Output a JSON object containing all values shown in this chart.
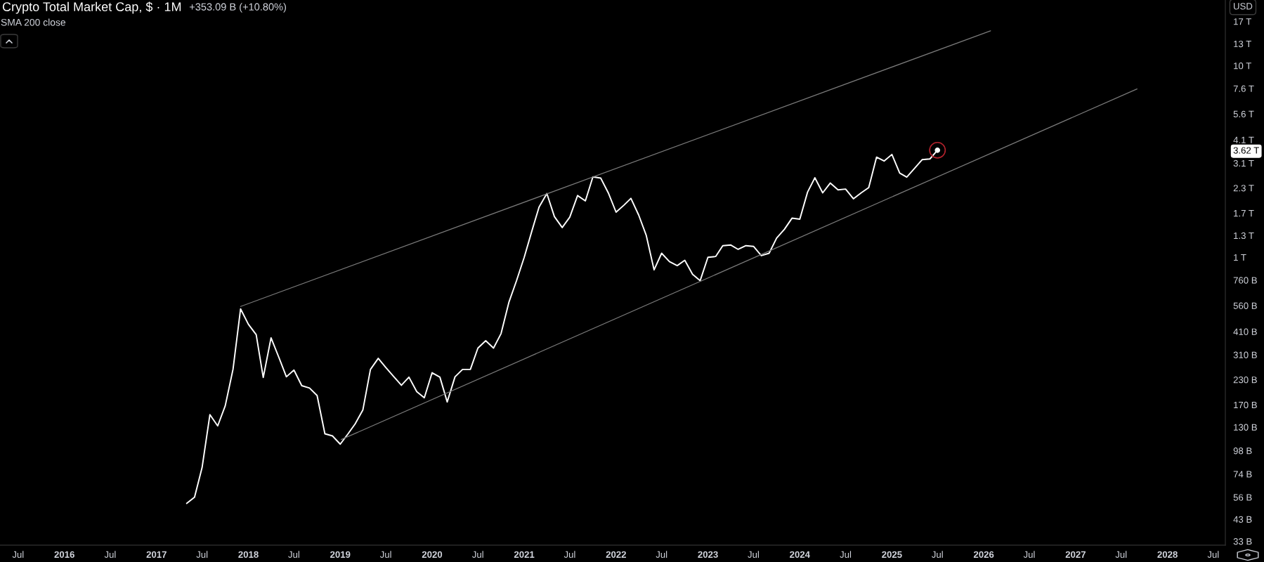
{
  "chart_data": {
    "type": "line",
    "title": "Crypto Total Market Cap, $ · 1M",
    "subtitle": "SMA 200 close",
    "annotations": [
      "+353.09 B (+10.80%)",
      "USD"
    ],
    "log": true,
    "xlim": [
      "2015-04-20",
      "2028-08-18"
    ],
    "ylim": [
      31500000000.0,
      22000000000000.0
    ],
    "xticks": [
      {
        "value": "2015-07",
        "label": "Jul"
      },
      {
        "value": "2016-01",
        "label": "2016"
      },
      {
        "value": "2016-07",
        "label": "Jul"
      },
      {
        "value": "2017-01",
        "label": "2017"
      },
      {
        "value": "2017-07",
        "label": "Jul"
      },
      {
        "value": "2018-01",
        "label": "2018"
      },
      {
        "value": "2018-07",
        "label": "Jul"
      },
      {
        "value": "2019-01",
        "label": "2019"
      },
      {
        "value": "2019-07",
        "label": "Jul"
      },
      {
        "value": "2020-01",
        "label": "2020"
      },
      {
        "value": "2020-07",
        "label": "Jul"
      },
      {
        "value": "2021-01",
        "label": "2021"
      },
      {
        "value": "2021-07",
        "label": "Jul"
      },
      {
        "value": "2022-01",
        "label": "2022"
      },
      {
        "value": "2022-07",
        "label": "Jul"
      },
      {
        "value": "2023-01",
        "label": "2023"
      },
      {
        "value": "2023-07",
        "label": "Jul"
      },
      {
        "value": "2024-01",
        "label": "2024"
      },
      {
        "value": "2024-07",
        "label": "Jul"
      },
      {
        "value": "2025-01",
        "label": "2025"
      },
      {
        "value": "2025-07",
        "label": "Jul"
      },
      {
        "value": "2026-01",
        "label": "2026"
      },
      {
        "value": "2026-07",
        "label": "Jul"
      },
      {
        "value": "2027-01",
        "label": "2027"
      },
      {
        "value": "2027-07",
        "label": "Jul"
      },
      {
        "value": "2028-01",
        "label": "2028"
      },
      {
        "value": "2028-07",
        "label": "Jul"
      }
    ],
    "yticks": [
      {
        "value": 33000000000.0,
        "label": "33 B"
      },
      {
        "value": 43000000000.0,
        "label": "43 B"
      },
      {
        "value": 56000000000.0,
        "label": "56 B"
      },
      {
        "value": 74000000000.0,
        "label": "74 B"
      },
      {
        "value": 98000000000.0,
        "label": "98 B"
      },
      {
        "value": 130000000000.0,
        "label": "130 B"
      },
      {
        "value": 170000000000.0,
        "label": "170 B"
      },
      {
        "value": 230000000000.0,
        "label": "230 B"
      },
      {
        "value": 310000000000.0,
        "label": "310 B"
      },
      {
        "value": 410000000000.0,
        "label": "410 B"
      },
      {
        "value": 560000000000.0,
        "label": "560 B"
      },
      {
        "value": 760000000000.0,
        "label": "760 B"
      },
      {
        "value": 1000000000000.0,
        "label": "1 T"
      },
      {
        "value": 1300000000000.0,
        "label": "1.3 T"
      },
      {
        "value": 1700000000000.0,
        "label": "1.7 T"
      },
      {
        "value": 2300000000000.0,
        "label": "2.3 T"
      },
      {
        "value": 3100000000000.0,
        "label": "3.1 T"
      },
      {
        "value": 3620000000000.0,
        "label": "3.62 T"
      },
      {
        "value": 4100000000000.0,
        "label": "4.1 T"
      },
      {
        "value": 5600000000000.0,
        "label": "5.6 T"
      },
      {
        "value": 7600000000000.0,
        "label": "7.6 T"
      },
      {
        "value": 10000000000000.0,
        "label": "10 T"
      },
      {
        "value": 13000000000000.0,
        "label": "13 T"
      },
      {
        "value": 17000000000000.0,
        "label": "17 T"
      }
    ],
    "series": [
      {
        "color": "#ffffff",
        "x": [
          "2017-05",
          "2017-06",
          "2017-07",
          "2017-08",
          "2017-09",
          "2017-10",
          "2017-11",
          "2017-12",
          "2018-01",
          "2018-02",
          "2018-03",
          "2018-04",
          "2018-05",
          "2018-06",
          "2018-07",
          "2018-08",
          "2018-09",
          "2018-10",
          "2018-11",
          "2018-12",
          "2019-01",
          "2019-02",
          "2019-03",
          "2019-04",
          "2019-05",
          "2019-06",
          "2019-07",
          "2019-08",
          "2019-09",
          "2019-10",
          "2019-11",
          "2019-12",
          "2020-01",
          "2020-02",
          "2020-03",
          "2020-04",
          "2020-05",
          "2020-06",
          "2020-07",
          "2020-08",
          "2020-09",
          "2020-10",
          "2020-11",
          "2020-12",
          "2021-01",
          "2021-02",
          "2021-03",
          "2021-04",
          "2021-05",
          "2021-06",
          "2021-07",
          "2021-08",
          "2021-09",
          "2021-10",
          "2021-11",
          "2021-12",
          "2022-01",
          "2022-02",
          "2022-03",
          "2022-04",
          "2022-05",
          "2022-06",
          "2022-07",
          "2022-08",
          "2022-09",
          "2022-10",
          "2022-11",
          "2022-12",
          "2023-01",
          "2023-02",
          "2023-03",
          "2023-04",
          "2023-05",
          "2023-06",
          "2023-07",
          "2023-08",
          "2023-09",
          "2023-10",
          "2023-11",
          "2023-12",
          "2024-01",
          "2024-02",
          "2024-03",
          "2024-04",
          "2024-05",
          "2024-06",
          "2024-07",
          "2024-08",
          "2024-09",
          "2024-10",
          "2024-11",
          "2024-12",
          "2025-01",
          "2025-02",
          "2025-03",
          "2025-04",
          "2025-05",
          "2025-06",
          "2025-07"
        ],
        "values": [
          52000000000.0,
          56000000000.0,
          80000000000.0,
          151000000000.0,
          132000000000.0,
          168000000000.0,
          261000000000.0,
          538000000000.0,
          447000000000.0,
          395000000000.0,
          236000000000.0,
          380000000000.0,
          303000000000.0,
          238000000000.0,
          258000000000.0,
          214000000000.0,
          208000000000.0,
          190000000000.0,
          120000000000.0,
          117000000000.0,
          106000000000.0,
          120000000000.0,
          135000000000.0,
          160000000000.0,
          260000000000.0,
          297000000000.0,
          266000000000.0,
          239000000000.0,
          215000000000.0,
          237000000000.0,
          199000000000.0,
          185000000000.0,
          250000000000.0,
          237000000000.0,
          176000000000.0,
          238000000000.0,
          260000000000.0,
          260000000000.0,
          336000000000.0,
          367000000000.0,
          336000000000.0,
          400000000000.0,
          582000000000.0,
          752000000000.0,
          1000000000000.0,
          1380000000000.0,
          1830000000000.0,
          2150000000000.0,
          1630000000000.0,
          1430000000000.0,
          1620000000000.0,
          2100000000000.0,
          1970000000000.0,
          2630000000000.0,
          2590000000000.0,
          2170000000000.0,
          1720000000000.0,
          1870000000000.0,
          2030000000000.0,
          1660000000000.0,
          1300000000000.0,
          860000000000.0,
          1050000000000.0,
          950000000000.0,
          905000000000.0,
          965000000000.0,
          815000000000.0,
          755000000000.0,
          1000000000000.0,
          1010000000000.0,
          1150000000000.0,
          1160000000000.0,
          1100000000000.0,
          1150000000000.0,
          1140000000000.0,
          1020000000000.0,
          1050000000000.0,
          1260000000000.0,
          1400000000000.0,
          1600000000000.0,
          1580000000000.0,
          2190000000000.0,
          2600000000000.0,
          2170000000000.0,
          2440000000000.0,
          2250000000000.0,
          2270000000000.0,
          2020000000000.0,
          2170000000000.0,
          2310000000000.0,
          3330000000000.0,
          3180000000000.0,
          3440000000000.0,
          2750000000000.0,
          2620000000000.0,
          2910000000000.0,
          3230000000000.0,
          3260000000000.0,
          3620000000000.0
        ]
      },
      {
        "color": "#7a7a7a",
        "x": [
          "2017-12-01",
          "2026-01-28"
        ],
        "values": [
          554000000000.0,
          15200000000000.0
        ]
      },
      {
        "color": "#7a7a7a",
        "x": [
          "2019-01-05",
          "2027-09-02"
        ],
        "values": [
          112000000000.0,
          7560000000000.0
        ]
      }
    ]
  }
}
